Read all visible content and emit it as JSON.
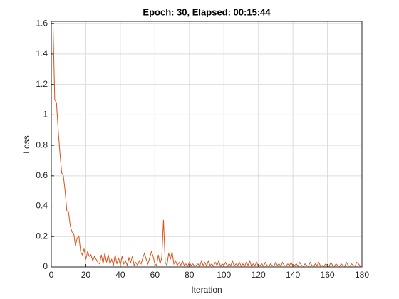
{
  "chart_data": {
    "type": "line",
    "title": "Epoch: 30, Elapsed: 00:15:44",
    "x_label": "Iteration",
    "y_label": "Loss",
    "xlim": [
      0,
      180
    ],
    "ylim": [
      0,
      1.615
    ],
    "xticks": [
      0,
      20,
      40,
      60,
      80,
      100,
      120,
      140,
      160,
      180
    ],
    "yticks": [
      0,
      0.2,
      0.4,
      0.6,
      0.8,
      1,
      1.2,
      1.4,
      1.6
    ],
    "grid": true,
    "series": [
      {
        "color": "#d95319",
        "x": [
          1,
          2,
          3,
          4,
          5,
          6,
          7,
          8,
          9,
          10,
          11,
          12,
          13,
          14,
          15,
          16,
          17,
          18,
          19,
          20,
          21,
          22,
          23,
          24,
          25,
          26,
          27,
          28,
          29,
          30,
          31,
          32,
          33,
          34,
          35,
          36,
          37,
          38,
          39,
          40,
          41,
          42,
          43,
          44,
          45,
          46,
          47,
          48,
          49,
          50,
          51,
          52,
          53,
          54,
          55,
          56,
          57,
          58,
          59,
          60,
          61,
          62,
          63,
          64,
          65,
          66,
          67,
          68,
          69,
          70,
          71,
          72,
          73,
          74,
          75,
          76,
          77,
          78,
          79,
          80,
          81,
          82,
          83,
          84,
          85,
          86,
          87,
          88,
          89,
          90,
          91,
          92,
          93,
          94,
          95,
          96,
          97,
          98,
          99,
          100,
          101,
          102,
          103,
          104,
          105,
          106,
          107,
          108,
          109,
          110,
          111,
          112,
          113,
          114,
          115,
          116,
          117,
          118,
          119,
          120,
          121,
          122,
          123,
          124,
          125,
          126,
          127,
          128,
          129,
          130,
          131,
          132,
          133,
          134,
          135,
          136,
          137,
          138,
          139,
          140,
          141,
          142,
          143,
          144,
          145,
          146,
          147,
          148,
          149,
          150,
          151,
          152,
          153,
          154,
          155,
          156,
          157,
          158,
          159,
          160,
          161,
          162,
          163,
          164,
          165,
          166,
          167,
          168,
          169,
          170,
          171,
          172,
          173,
          174,
          175,
          176,
          177,
          178,
          179,
          180
        ],
        "values": [
          1.6,
          1.1,
          1.08,
          0.9,
          0.75,
          0.62,
          0.6,
          0.5,
          0.37,
          0.36,
          0.27,
          0.23,
          0.22,
          0.14,
          0.19,
          0.2,
          0.1,
          0.08,
          0.12,
          0.05,
          0.1,
          0.07,
          0.08,
          0.04,
          0.07,
          0.05,
          0.03,
          0.02,
          0.08,
          0.02,
          0.09,
          0.03,
          0.08,
          0.02,
          0.05,
          0.01,
          0.08,
          0.02,
          0.06,
          0.01,
          0.07,
          0.02,
          0.04,
          0.01,
          0.06,
          0.03,
          0.07,
          0.01,
          0.03,
          0.01,
          0.04,
          0.02,
          0.06,
          0.09,
          0.05,
          0.02,
          0.06,
          0.1,
          0.07,
          0.02,
          0.01,
          0.08,
          0.02,
          0.06,
          0.31,
          0.03,
          0.01,
          0.09,
          0.05,
          0.1,
          0.02,
          0.04,
          0.01,
          0.03,
          0.01,
          0.04,
          0.01,
          0.02,
          0.005,
          0.03,
          0.01,
          0.02,
          0.005,
          0.01,
          0.02,
          0.005,
          0.04,
          0.01,
          0.03,
          0.005,
          0.04,
          0.01,
          0.02,
          0.005,
          0.03,
          0.01,
          0.04,
          0.005,
          0.02,
          0.01,
          0.03,
          0.005,
          0.02,
          0.01,
          0.04,
          0.005,
          0.02,
          0.01,
          0.03,
          0.005,
          0.02,
          0.005,
          0.03,
          0.01,
          0.04,
          0.005,
          0.02,
          0.01,
          0.03,
          0.005,
          0.01,
          0.02,
          0.005,
          0.03,
          0.01,
          0.005,
          0.02,
          0.01,
          0.005,
          0.03,
          0.01,
          0.02,
          0.005,
          0.03,
          0.01,
          0.005,
          0.02,
          0.01,
          0.03,
          0.005,
          0.01,
          0.02,
          0.005,
          0.03,
          0.01,
          0.005,
          0.02,
          0.01,
          0.005,
          0.03,
          0.01,
          0.005,
          0.02,
          0.01,
          0.03,
          0.005,
          0.01,
          0.005,
          0.02,
          0.01,
          0.005,
          0.03,
          0.01,
          0.005,
          0.02,
          0.01,
          0.005,
          0.02,
          0.01,
          0.005,
          0.03,
          0.01,
          0.005,
          0.02,
          0.01,
          0.005,
          0.03,
          0.02,
          0.005,
          0.01
        ]
      }
    ]
  }
}
